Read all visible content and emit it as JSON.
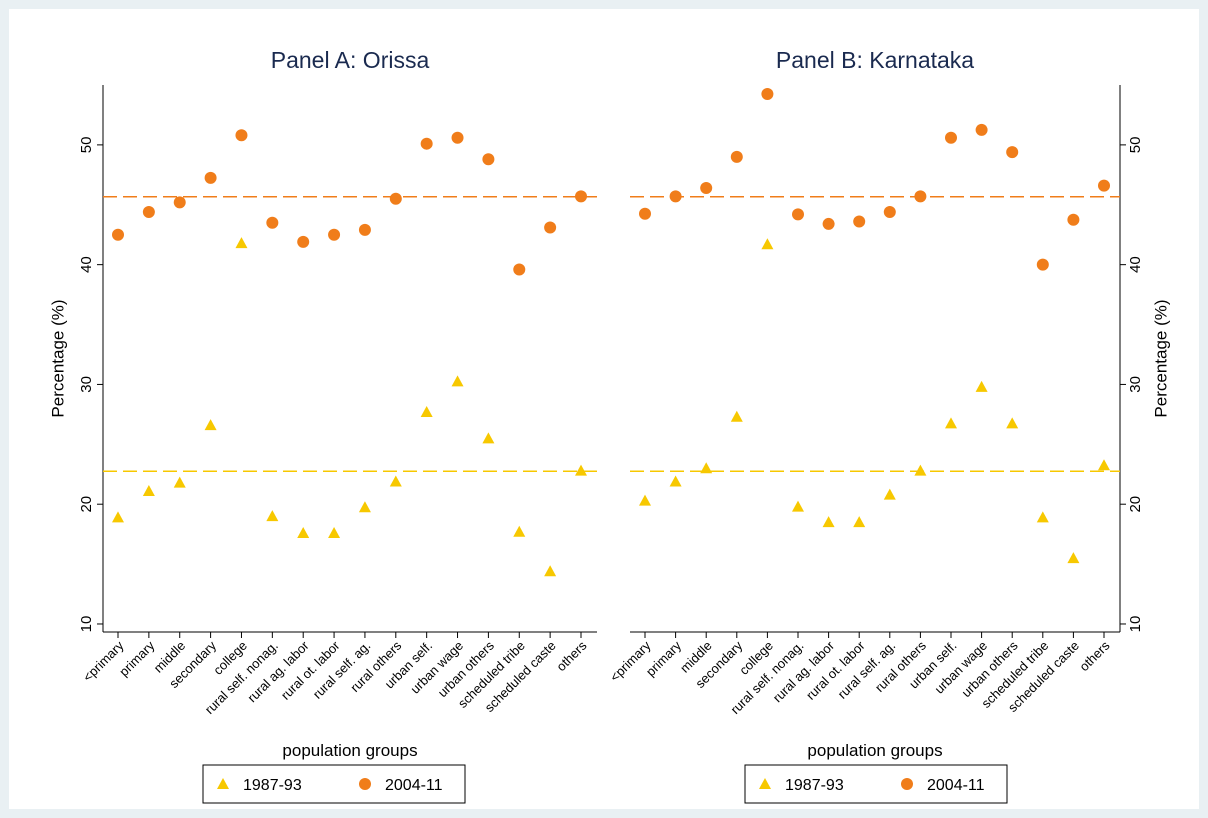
{
  "chart_data": [
    {
      "type": "scatter",
      "title": "Panel A: Orissa",
      "xlabel": "population groups",
      "ylabel": "Percentage (%)",
      "yaxis_side": "left",
      "categories": [
        "<primary",
        "primary",
        "middle",
        "secondary",
        "college",
        "rural self. nonag.",
        "rural ag. labor",
        "rural ot. labor",
        "rural self. ag.",
        "rural others",
        "urban self.",
        "urban wage",
        "urban others",
        "scheduled tribe",
        "scheduled caste",
        "others"
      ],
      "series": [
        {
          "name": "1987-93",
          "color": "#f7c800",
          "marker": "triangle",
          "values": [
            18.9,
            21.1,
            21.8,
            26.6,
            41.8,
            19.0,
            17.6,
            17.6,
            19.75,
            21.9,
            27.7,
            30.25,
            25.5,
            17.7,
            14.4,
            22.8
          ]
        },
        {
          "name": "2004-11",
          "color": "#f07d1a",
          "marker": "circle",
          "values": [
            42.5,
            44.4,
            45.2,
            47.25,
            50.8,
            43.5,
            41.9,
            42.5,
            42.9,
            45.5,
            50.1,
            50.6,
            48.8,
            39.6,
            43.1,
            45.7
          ]
        }
      ],
      "hlines": [
        {
          "value": 45.67,
          "color": "#f07d1a"
        },
        {
          "value": 22.75,
          "color": "#f7c800"
        }
      ],
      "ylim": [
        9.33,
        55
      ],
      "yticks": [
        10,
        20,
        30,
        40,
        50
      ]
    },
    {
      "type": "scatter",
      "title": "Panel B: Karnataka",
      "xlabel": "population groups",
      "ylabel": "Percentage (%)",
      "yaxis_side": "right",
      "categories": [
        "<primary",
        "primary",
        "middle",
        "secondary",
        "college",
        "rural self. nonag.",
        "rural ag. labor",
        "rural ot. labor",
        "rural self. ag.",
        "rural others",
        "urban self.",
        "urban wage",
        "urban others",
        "scheduled tribe",
        "scheduled caste",
        "others"
      ],
      "series": [
        {
          "name": "1987-93",
          "color": "#f7c800",
          "marker": "triangle",
          "values": [
            20.3,
            21.9,
            23.0,
            27.3,
            41.7,
            19.8,
            18.5,
            18.5,
            20.8,
            22.8,
            26.75,
            29.8,
            26.75,
            18.9,
            15.5,
            23.25
          ]
        },
        {
          "name": "2004-11",
          "color": "#f07d1a",
          "marker": "circle",
          "values": [
            44.25,
            45.7,
            46.4,
            49.0,
            54.25,
            44.2,
            43.4,
            43.6,
            44.4,
            45.7,
            50.6,
            51.25,
            49.4,
            40.0,
            43.75,
            46.6
          ]
        }
      ],
      "hlines": [
        {
          "value": 45.67,
          "color": "#f07d1a"
        },
        {
          "value": 22.75,
          "color": "#f7c800"
        }
      ],
      "ylim": [
        9.33,
        55
      ],
      "yticks": [
        10,
        20,
        30,
        40,
        50
      ]
    }
  ]
}
